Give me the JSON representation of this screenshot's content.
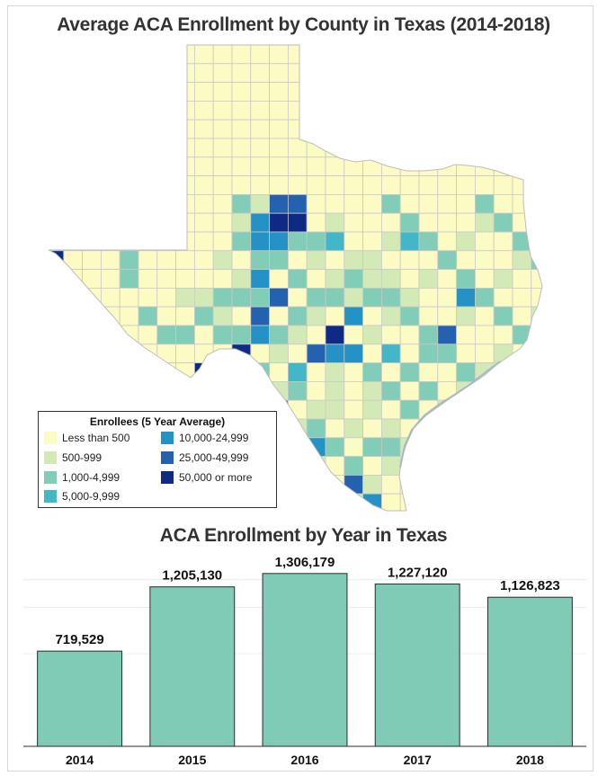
{
  "map": {
    "title": "Average ACA Enrollment by County in Texas (2014-2018)",
    "legend": {
      "title": "Enrollees (5 Year Average)",
      "items": [
        {
          "label": "Less than 500",
          "color": "#fdfbc4"
        },
        {
          "label": "500-999",
          "color": "#d4eab6"
        },
        {
          "label": "1,000-4,999",
          "color": "#81cdb7"
        },
        {
          "label": "5,000-9,999",
          "color": "#43b7c7"
        },
        {
          "label": "10,000-24,999",
          "color": "#2592c6"
        },
        {
          "label": "25,000-49,999",
          "color": "#2462b0"
        },
        {
          "label": "50,000 or more",
          "color": "#0e2a85"
        }
      ]
    }
  },
  "chart_data": {
    "type": "bar",
    "title": "ACA Enrollment by Year in Texas",
    "categories": [
      "2014",
      "2015",
      "2016",
      "2017",
      "2018"
    ],
    "values": [
      719529,
      1205130,
      1306179,
      1227120,
      1126823
    ],
    "value_labels": [
      "719,529",
      "1,205,130",
      "1,306,179",
      "1,227,120",
      "1,126,823"
    ],
    "ylim": [
      0,
      1400000
    ],
    "bar_color": "#7fcbb6",
    "grid": true
  }
}
